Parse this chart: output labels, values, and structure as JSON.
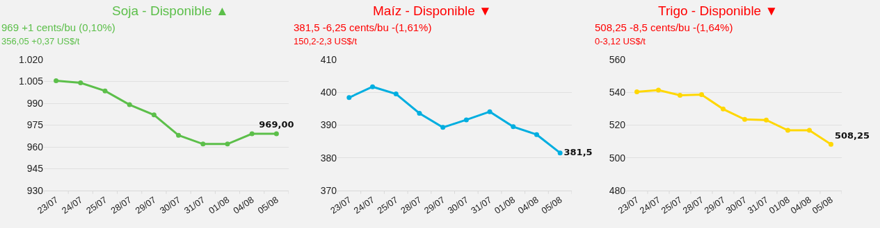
{
  "chart_data": [
    {
      "type": "line",
      "title": "Soja - Disponible ▲",
      "subtitle": "969 +1 cents/bu (0,10%)",
      "annotations": [
        "356,05 +0,37 US$/t"
      ],
      "categories": [
        "23/07",
        "24/07",
        "25/07",
        "28/07",
        "29/07",
        "30/07",
        "31/07",
        "01/08",
        "04/08",
        "05/08"
      ],
      "series": [
        {
          "color": "#5cbf4a",
          "values": [
            1005.5,
            1004,
            998.5,
            989,
            982,
            968,
            962,
            962,
            969,
            969
          ],
          "value_labels": [
            null,
            null,
            null,
            null,
            null,
            null,
            null,
            null,
            null,
            "969,00"
          ]
        }
      ],
      "ylim": [
        930,
        1020
      ],
      "yticks": [
        930,
        945,
        960,
        975,
        990,
        {
          "value": 1005,
          "label": "1.005"
        },
        {
          "value": 1020,
          "label": "1.020"
        }
      ],
      "grid": "y",
      "marker": "circle"
    },
    {
      "type": "line",
      "title": "Maíz - Disponible ▼",
      "subtitle": "381,5 -6,25 cents/bu -(1,61%)",
      "annotations": [
        "150,2-2,3 US$/t"
      ],
      "categories": [
        "23/07",
        "24/07",
        "25/07",
        "28/07",
        "29/07",
        "30/07",
        "31/07",
        "01/08",
        "04/08",
        "05/08"
      ],
      "series": [
        {
          "color": "#00aee0",
          "values": [
            398.4,
            401.7,
            399.5,
            393.6,
            389.3,
            391.6,
            394.1,
            389.5,
            387.1,
            381.5
          ],
          "value_labels": [
            null,
            null,
            null,
            null,
            null,
            null,
            null,
            null,
            null,
            "381,5"
          ]
        }
      ],
      "ylim": [
        370,
        410
      ],
      "yticks": [
        370,
        380,
        390,
        400,
        410
      ],
      "grid": "y",
      "marker": "circle"
    },
    {
      "type": "line",
      "title": "Trigo - Disponible ▼",
      "subtitle": "508,25 -8,5 cents/bu -(1,64%)",
      "annotations": [
        "0-3,12 US$/t"
      ],
      "categories": [
        "23/07",
        "24/07",
        "25/07",
        "28/07",
        "29/07",
        "30/07",
        "31/07",
        "01/08",
        "04/08",
        "05/08"
      ],
      "series": [
        {
          "color": "#ffd700",
          "values": [
            540.3,
            541.4,
            538.2,
            538.6,
            529.8,
            523.5,
            523.1,
            516.8,
            516.8,
            508.25
          ],
          "value_labels": [
            null,
            null,
            null,
            null,
            null,
            null,
            null,
            null,
            null,
            "508,25"
          ]
        }
      ],
      "ylim": [
        480,
        560
      ],
      "yticks": [
        480,
        500,
        520,
        540,
        560
      ],
      "grid": "y",
      "marker": "circle"
    }
  ]
}
